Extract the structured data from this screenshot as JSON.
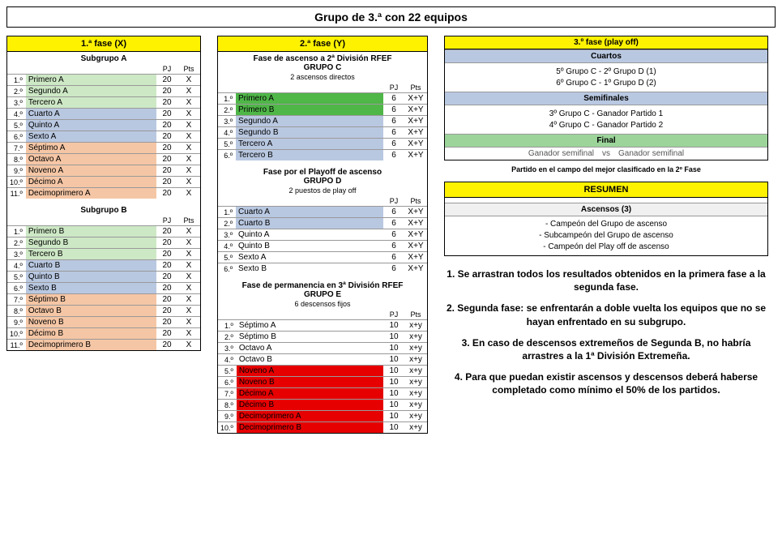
{
  "title": "Grupo de 3.ª con 22 equipos",
  "phase1": {
    "header": "1.ª fase (X)",
    "colPJ": "PJ",
    "colPts": "Pts",
    "subA": {
      "title": "Subgrupo A",
      "rows": [
        {
          "pos": "1.º",
          "team": "Primero A",
          "pj": "20",
          "pts": "X",
          "cls": "row-green"
        },
        {
          "pos": "2.º",
          "team": "Segundo A",
          "pj": "20",
          "pts": "X",
          "cls": "row-green"
        },
        {
          "pos": "3.º",
          "team": "Tercero A",
          "pj": "20",
          "pts": "X",
          "cls": "row-green"
        },
        {
          "pos": "4.º",
          "team": "Cuarto A",
          "pj": "20",
          "pts": "X",
          "cls": "row-blue"
        },
        {
          "pos": "5.º",
          "team": "Quinto A",
          "pj": "20",
          "pts": "X",
          "cls": "row-blue"
        },
        {
          "pos": "6.º",
          "team": "Sexto A",
          "pj": "20",
          "pts": "X",
          "cls": "row-blue"
        },
        {
          "pos": "7.º",
          "team": "Séptimo A",
          "pj": "20",
          "pts": "X",
          "cls": "row-orange"
        },
        {
          "pos": "8.º",
          "team": "Octavo A",
          "pj": "20",
          "pts": "X",
          "cls": "row-orange"
        },
        {
          "pos": "9.º",
          "team": "Noveno A",
          "pj": "20",
          "pts": "X",
          "cls": "row-orange"
        },
        {
          "pos": "10.º",
          "team": "Décimo A",
          "pj": "20",
          "pts": "X",
          "cls": "row-orange"
        },
        {
          "pos": "11.º",
          "team": "Decimoprimero A",
          "pj": "20",
          "pts": "X",
          "cls": "row-orange"
        }
      ]
    },
    "subB": {
      "title": "Subgrupo B",
      "rows": [
        {
          "pos": "1.º",
          "team": "Primero B",
          "pj": "20",
          "pts": "X",
          "cls": "row-green"
        },
        {
          "pos": "2.º",
          "team": "Segundo B",
          "pj": "20",
          "pts": "X",
          "cls": "row-green"
        },
        {
          "pos": "3.º",
          "team": "Tercero B",
          "pj": "20",
          "pts": "X",
          "cls": "row-green"
        },
        {
          "pos": "4.º",
          "team": "Cuarto B",
          "pj": "20",
          "pts": "X",
          "cls": "row-blue"
        },
        {
          "pos": "5.º",
          "team": "Quinto B",
          "pj": "20",
          "pts": "X",
          "cls": "row-blue"
        },
        {
          "pos": "6.º",
          "team": "Sexto B",
          "pj": "20",
          "pts": "X",
          "cls": "row-blue"
        },
        {
          "pos": "7.º",
          "team": "Séptimo B",
          "pj": "20",
          "pts": "X",
          "cls": "row-orange"
        },
        {
          "pos": "8.º",
          "team": "Octavo B",
          "pj": "20",
          "pts": "X",
          "cls": "row-orange"
        },
        {
          "pos": "9.º",
          "team": "Noveno B",
          "pj": "20",
          "pts": "X",
          "cls": "row-orange"
        },
        {
          "pos": "10.º",
          "team": "Décimo B",
          "pj": "20",
          "pts": "X",
          "cls": "row-orange"
        },
        {
          "pos": "11.º",
          "team": "Decimoprimero B",
          "pj": "20",
          "pts": "X",
          "cls": "row-orange"
        }
      ]
    }
  },
  "phase2": {
    "header": "2.ª fase (Y)",
    "colPJ": "PJ",
    "colPts": "Pts",
    "groupC": {
      "title": "Fase de ascenso a 2ª División RFEF\nGRUPO C",
      "note": "2 ascensos directos",
      "rows": [
        {
          "pos": "1.º",
          "team": "Primero A",
          "pj": "6",
          "pts": "X+Y",
          "cls": "row-brightgreen"
        },
        {
          "pos": "2.º",
          "team": "Primero B",
          "pj": "6",
          "pts": "X+Y",
          "cls": "row-brightgreen"
        },
        {
          "pos": "3.º",
          "team": "Segundo A",
          "pj": "6",
          "pts": "X+Y",
          "cls": "row-blue"
        },
        {
          "pos": "4.º",
          "team": "Segundo B",
          "pj": "6",
          "pts": "X+Y",
          "cls": "row-blue"
        },
        {
          "pos": "5.º",
          "team": "Tercero A",
          "pj": "6",
          "pts": "X+Y",
          "cls": "row-blue"
        },
        {
          "pos": "6.º",
          "team": "Tercero B",
          "pj": "6",
          "pts": "X+Y",
          "cls": "row-blue"
        }
      ]
    },
    "groupD": {
      "title": "Fase por el Playoff de ascenso\nGRUPO D",
      "note": "2 puestos de play off",
      "rows": [
        {
          "pos": "1.º",
          "team": "Cuarto A",
          "pj": "6",
          "pts": "X+Y",
          "cls": "row-blue"
        },
        {
          "pos": "2.º",
          "team": "Cuarto B",
          "pj": "6",
          "pts": "X+Y",
          "cls": "row-blue"
        },
        {
          "pos": "3.º",
          "team": "Quinto A",
          "pj": "6",
          "pts": "X+Y",
          "cls": ""
        },
        {
          "pos": "4.º",
          "team": "Quinto B",
          "pj": "6",
          "pts": "X+Y",
          "cls": ""
        },
        {
          "pos": "5.º",
          "team": "Sexto A",
          "pj": "6",
          "pts": "X+Y",
          "cls": ""
        },
        {
          "pos": "6.º",
          "team": "Sexto B",
          "pj": "6",
          "pts": "X+Y",
          "cls": ""
        }
      ]
    },
    "groupE": {
      "title": "Fase de permanencia en 3ª División RFEF\nGRUPO E",
      "note": "6 descensos fijos",
      "rows": [
        {
          "pos": "1.º",
          "team": "Séptimo A",
          "pj": "10",
          "pts": "x+y",
          "cls": ""
        },
        {
          "pos": "2.º",
          "team": "Séptimo B",
          "pj": "10",
          "pts": "x+y",
          "cls": ""
        },
        {
          "pos": "3.º",
          "team": "Octavo A",
          "pj": "10",
          "pts": "x+y",
          "cls": ""
        },
        {
          "pos": "4.º",
          "team": "Octavo B",
          "pj": "10",
          "pts": "x+y",
          "cls": ""
        },
        {
          "pos": "5.º",
          "team": "Noveno A",
          "pj": "10",
          "pts": "x+y",
          "cls": "row-red"
        },
        {
          "pos": "6.º",
          "team": "Noveno B",
          "pj": "10",
          "pts": "x+y",
          "cls": "row-red"
        },
        {
          "pos": "7.º",
          "team": "Décimo A",
          "pj": "10",
          "pts": "x+y",
          "cls": "row-red"
        },
        {
          "pos": "8.º",
          "team": "Décimo B",
          "pj": "10",
          "pts": "x+y",
          "cls": "row-red"
        },
        {
          "pos": "9.º",
          "team": "Decimoprimero A",
          "pj": "10",
          "pts": "x+y",
          "cls": "row-red"
        },
        {
          "pos": "10.º",
          "team": "Decimoprimero B",
          "pj": "10",
          "pts": "x+y",
          "cls": "row-red"
        }
      ]
    }
  },
  "phase3": {
    "header": "3.º fase (play off)",
    "cuartos": {
      "title": "Cuartos",
      "m1": "5º Grupo C - 2º Grupo D (1)",
      "m2": "6º Grupo C - 1º Grupo D (2)"
    },
    "semis": {
      "title": "Semifinales",
      "m1": "3º Grupo C - Ganador Partido 1",
      "m2": "4º Grupo C - Ganador Partido 2"
    },
    "final": {
      "title": "Final",
      "left": "Ganador semifinal",
      "vs": "vs",
      "right": "Ganador semifinal"
    },
    "note": "Partido en el campo del mejor clasificado en la 2º Fase"
  },
  "resumen": {
    "header": "RESUMEN",
    "ascHeader": "Ascensos (3)",
    "a1": "- Campeón del Grupo de ascenso",
    "a2": "- Subcampeón del Grupo de ascenso",
    "a3": "- Campeón del Play off de ascenso"
  },
  "rules": {
    "r1": "1. Se arrastran todos los resultados obtenidos en la primera fase a la segunda fase.",
    "r2": "2. Segunda fase: se enfrentarán a doble vuelta los equipos que no se hayan enfrentado en su subgrupo.",
    "r3": "3. En caso de descensos extremeños de Segunda B, no habría arrastres a la 1ª División Extremeña.",
    "r4": "4. Para que puedan existir ascensos y descensos deberá haberse completado como mínimo el 50% de los partidos."
  }
}
